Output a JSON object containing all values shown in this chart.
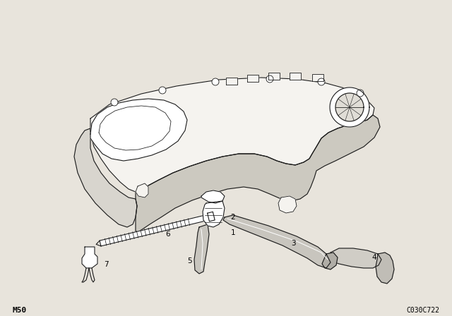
{
  "background_color": "#e8e4dc",
  "line_color": "#1a1a1a",
  "fill_white": "#ffffff",
  "fill_light": "#f5f3ef",
  "bottom_left_text": "M50",
  "bottom_right_text": "C030C722",
  "fig_width": 6.4,
  "fig_height": 4.48,
  "dpi": 100,
  "lw": 0.8
}
